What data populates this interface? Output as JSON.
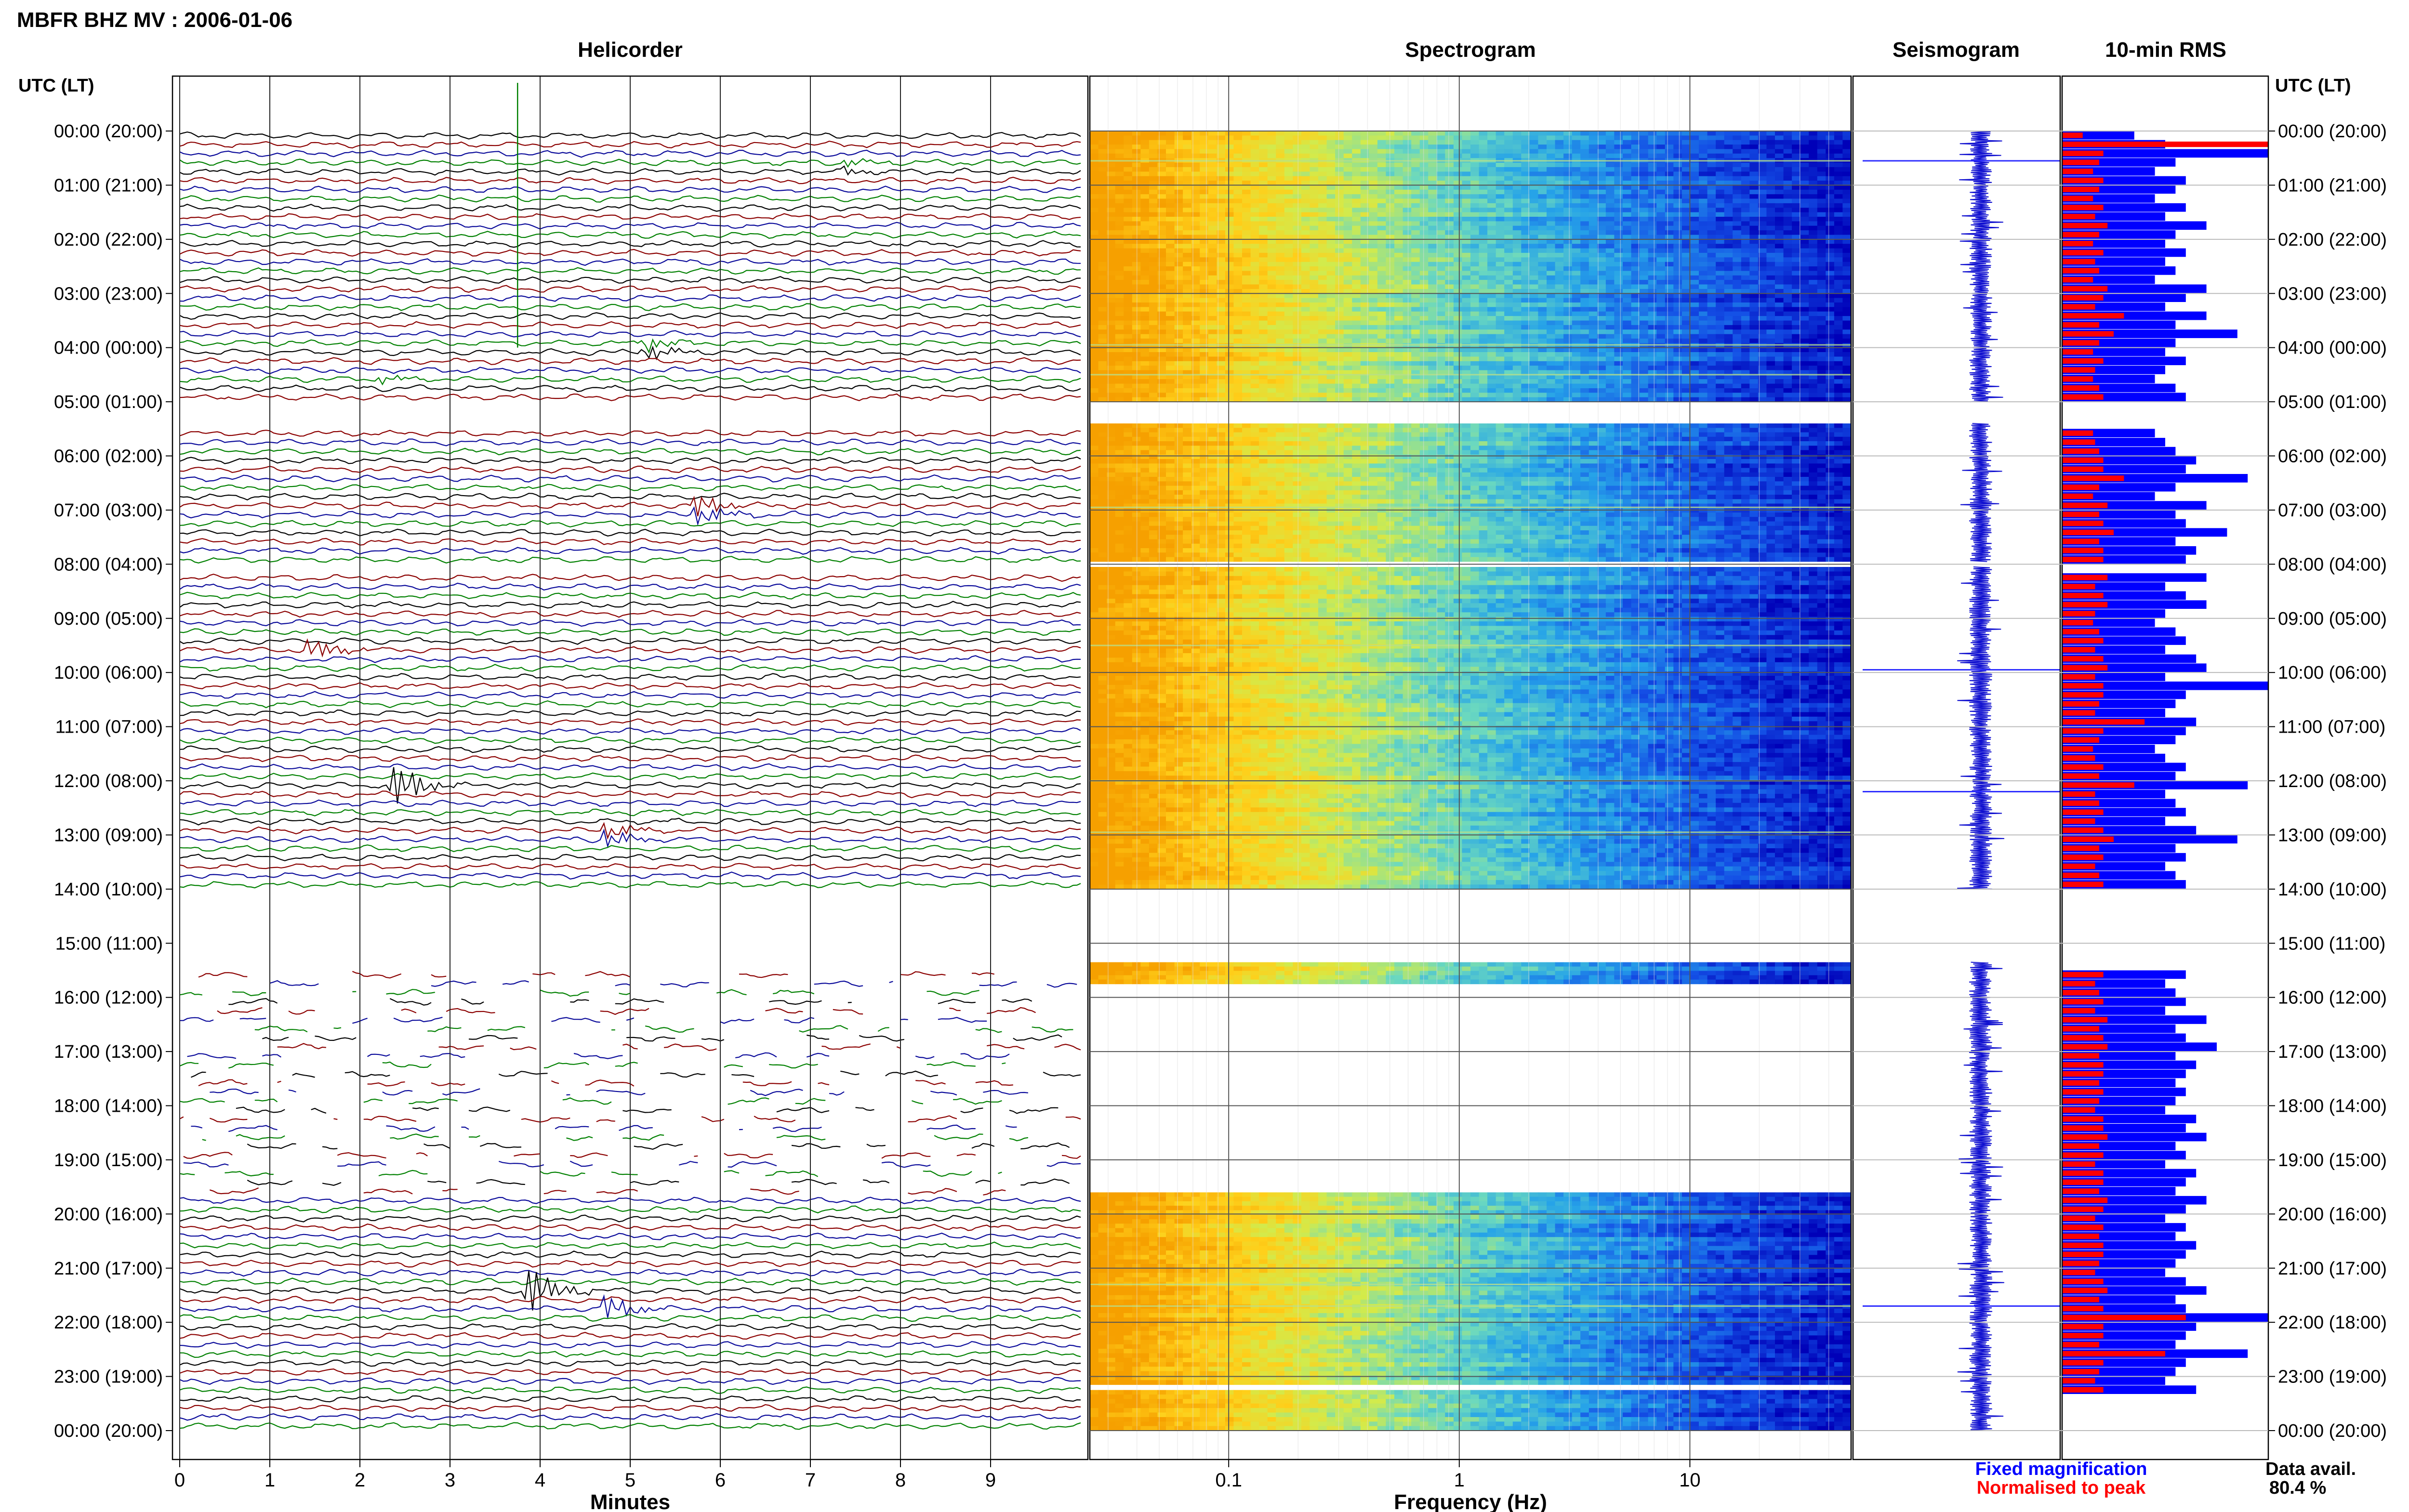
{
  "header": {
    "station_title": "MBFR BHZ MV : 2006-01-06",
    "utc_label_left": "UTC (LT)",
    "utc_label_right": "UTC (LT)"
  },
  "panels": {
    "helicorder": "Helicorder",
    "spectrogram": "Spectrogram",
    "seismogram": "Seismogram",
    "rms": "10-min RMS"
  },
  "colors": {
    "trace_cycle": [
      "#000000",
      "#8b0000",
      "#0a0a9a",
      "#008000"
    ],
    "fixed": "#0000ff",
    "normalised": "#ff0000"
  },
  "footer": {
    "legend_fixed": "Fixed magnification",
    "legend_normalised": "Normalised to peak",
    "data_avail_label": "Data avail.",
    "data_avail_value": "80.4 %"
  },
  "chart_data": [
    {
      "type": "line",
      "panel": "helicorder",
      "xlabel": "Minutes",
      "x_ticks": [
        "0",
        "1",
        "2",
        "3",
        "4",
        "5",
        "6",
        "7",
        "8",
        "9"
      ],
      "xlim": [
        0,
        10
      ],
      "y_ticks": [
        "00:00 (20:00)",
        "01:00 (21:00)",
        "02:00 (22:00)",
        "03:00 (23:00)",
        "04:00 (00:00)",
        "05:00 (01:00)",
        "06:00 (02:00)",
        "07:00 (03:00)",
        "08:00 (04:00)",
        "09:00 (05:00)",
        "10:00 (06:00)",
        "11:00 (07:00)",
        "12:00 (08:00)",
        "13:00 (09:00)",
        "14:00 (10:00)",
        "15:00 (11:00)",
        "16:00 (12:00)",
        "17:00 (13:00)",
        "18:00 (14:00)",
        "19:00 (15:00)",
        "20:00 (16:00)",
        "21:00 (17:00)",
        "22:00 (18:00)",
        "23:00 (19:00)",
        "00:00 (20:00)"
      ],
      "y_ticks_right": [
        "00:00 (20:00)",
        "01:00 (21:00)",
        "02:00 (22:00)",
        "03:00 (23:00)",
        "04:00 (00:00)",
        "05:00 (01:00)",
        "06:00 (02:00)",
        "07:00 (03:00)",
        "08:00 (04:00)",
        "09:00 (05:00)",
        "10:00 (06:00)",
        "11:00 (07:00)",
        "12:00 (08:00)",
        "13:00 (09:00)",
        "14:00 (10:00)",
        "15:00 (11:00)",
        "16:00 (12:00)",
        "17:00 (13:00)",
        "18:00 (14:00)",
        "19:00 (15:00)",
        "20:00 (16:00)",
        "21:00 (17:00)",
        "22:00 (18:00)",
        "23:00 (19:00)",
        "00:00 (20:00)"
      ],
      "hours": 24,
      "rows_per_hour": 6,
      "gaps_hours": [
        [
          5.0,
          5.4
        ],
        [
          7.95,
          8.05
        ],
        [
          14.0,
          15.35
        ]
      ],
      "partial_hours": [
        15.35,
        19.6
      ],
      "events": [
        {
          "hour": 0.55,
          "minute": 7.4,
          "amp": 1.0
        },
        {
          "hour": 3.95,
          "minute": 5.2,
          "amp": 2.0
        },
        {
          "hour": 4.5,
          "minute": 2.3,
          "amp": 1.0
        },
        {
          "hour": 6.95,
          "minute": 5.8,
          "amp": 2.5
        },
        {
          "hour": 9.5,
          "minute": 1.5,
          "amp": 3.0
        },
        {
          "hour": 12.0,
          "minute": 2.4,
          "amp": 6.0
        },
        {
          "hour": 12.95,
          "minute": 4.8,
          "amp": 2.0
        },
        {
          "hour": 21.3,
          "minute": 3.9,
          "amp": 6.0
        },
        {
          "hour": 21.7,
          "minute": 4.8,
          "amp": 3.0
        }
      ],
      "spike": {
        "hour_start": 0.0,
        "hour_end": 4.0,
        "minute": 3.75
      }
    },
    {
      "type": "heatmap",
      "panel": "spectrogram",
      "xlabel": "Frequency (Hz)",
      "x_scale": "log",
      "xlim": [
        0.025,
        50
      ],
      "x_ticks": [
        {
          "value": 0.1,
          "label": "0.1"
        },
        {
          "value": 1,
          "label": "1"
        },
        {
          "value": 10,
          "label": "10"
        }
      ],
      "data_segments_hours": [
        [
          0.0,
          5.0
        ],
        [
          5.4,
          7.95
        ],
        [
          8.05,
          14.0
        ],
        [
          15.35,
          15.75
        ],
        [
          19.6,
          23.15
        ],
        [
          23.25,
          24.0
        ]
      ],
      "colormap": [
        "#0000b8",
        "#1450e6",
        "#26a3e8",
        "#6ad8c0",
        "#d2eb4c",
        "#ffcf1a",
        "#f6a000"
      ]
    },
    {
      "type": "line",
      "panel": "seismogram",
      "data_segments_hours": [
        [
          0.0,
          5.0
        ],
        [
          5.4,
          7.95
        ],
        [
          8.05,
          14.0
        ],
        [
          15.35,
          24.0
        ]
      ],
      "spikes": [
        {
          "hour": 0.55,
          "amp": 1.0
        },
        {
          "hour": 9.95,
          "amp": 1.0
        },
        {
          "hour": 12.2,
          "amp": 1.0
        },
        {
          "hour": 21.7,
          "amp": 1.0
        }
      ]
    },
    {
      "type": "bar",
      "panel": "rms",
      "orientation": "horizontal",
      "series": [
        {
          "name": "Fixed magnification",
          "values": [
            0.35,
            0.5,
            1.0,
            0.55,
            0.45,
            0.6,
            0.55,
            0.45,
            0.6,
            0.5,
            0.7,
            0.55,
            0.5,
            0.6,
            0.5,
            0.55,
            0.45,
            0.7,
            0.6,
            0.5,
            0.7,
            0.55,
            0.85,
            0.55,
            0.5,
            0.6,
            0.5,
            0.45,
            0.55,
            0.6,
            0.9,
            0.5,
            0.65,
            0.45,
            0.5,
            0.55,
            0.65,
            0.6,
            0.9,
            0.55,
            0.45,
            0.7,
            0.55,
            0.6,
            0.8,
            0.55,
            0.65,
            0.6,
            0.55,
            0.7,
            0.5,
            0.6,
            0.7,
            0.5,
            0.45,
            0.55,
            0.6,
            0.5,
            0.65,
            0.7,
            0.5,
            1.0,
            0.6,
            0.55,
            0.5,
            0.65,
            0.6,
            0.55,
            0.45,
            0.5,
            0.6,
            0.55,
            0.9,
            0.5,
            0.55,
            0.6,
            0.5,
            0.65,
            0.85,
            0.55,
            0.6,
            0.5,
            0.55,
            0.6,
            0.5,
            0.6,
            0.55,
            0.7,
            0.55,
            0.6,
            0.5,
            0.65,
            0.55,
            0.6,
            0.5,
            0.55,
            0.6,
            0.5,
            0.7,
            0.55,
            0.6,
            0.75,
            0.55,
            0.65,
            0.6,
            0.55,
            0.6,
            0.55,
            0.5,
            0.65,
            0.6,
            0.7,
            0.55,
            0.6,
            0.5,
            0.65,
            0.6,
            0.55,
            0.7,
            0.6,
            0.5,
            0.6,
            0.55,
            0.65,
            0.6,
            0.55,
            0.5,
            0.6,
            0.7,
            0.55,
            0.6,
            1.0,
            0.65,
            0.6,
            0.55,
            0.9,
            0.6,
            0.55,
            0.5,
            0.65
          ]
        },
        {
          "name": "Normalised to peak",
          "values": [
            0.1,
            1.0,
            0.2,
            0.18,
            0.15,
            0.2,
            0.18,
            0.15,
            0.2,
            0.16,
            0.22,
            0.18,
            0.15,
            0.2,
            0.16,
            0.18,
            0.15,
            0.22,
            0.2,
            0.16,
            0.3,
            0.18,
            0.25,
            0.18,
            0.15,
            0.2,
            0.16,
            0.15,
            0.18,
            0.2,
            0.25,
            0.16,
            0.2,
            0.15,
            0.16,
            0.18,
            0.2,
            0.2,
            0.3,
            0.18,
            0.15,
            0.22,
            0.18,
            0.2,
            0.25,
            0.18,
            0.2,
            0.2,
            0.18,
            0.22,
            0.16,
            0.2,
            0.22,
            0.16,
            0.15,
            0.18,
            0.2,
            0.16,
            0.2,
            0.22,
            0.16,
            0.2,
            0.2,
            0.18,
            0.16,
            0.4,
            0.2,
            0.18,
            0.15,
            0.16,
            0.2,
            0.18,
            0.35,
            0.16,
            0.18,
            0.2,
            0.16,
            0.2,
            0.25,
            0.18,
            0.2,
            0.16,
            0.18,
            0.2,
            0.16,
            0.2,
            0.18,
            0.22,
            0.18,
            0.2,
            0.16,
            0.2,
            0.18,
            0.2,
            0.16,
            0.18,
            0.2,
            0.16,
            0.22,
            0.18,
            0.2,
            0.22,
            0.18,
            0.2,
            0.2,
            0.18,
            0.2,
            0.18,
            0.16,
            0.2,
            0.2,
            0.22,
            0.18,
            0.2,
            0.16,
            0.2,
            0.2,
            0.18,
            0.22,
            0.2,
            0.16,
            0.2,
            0.18,
            0.2,
            0.2,
            0.18,
            0.16,
            0.2,
            0.22,
            0.18,
            0.2,
            0.6,
            0.2,
            0.2,
            0.18,
            0.5,
            0.2,
            0.18,
            0.16,
            0.2
          ]
        }
      ],
      "data_segments_hours": [
        [
          0.0,
          5.0
        ],
        [
          5.4,
          7.95
        ],
        [
          8.05,
          14.0
        ],
        [
          15.35,
          24.0
        ]
      ]
    }
  ]
}
